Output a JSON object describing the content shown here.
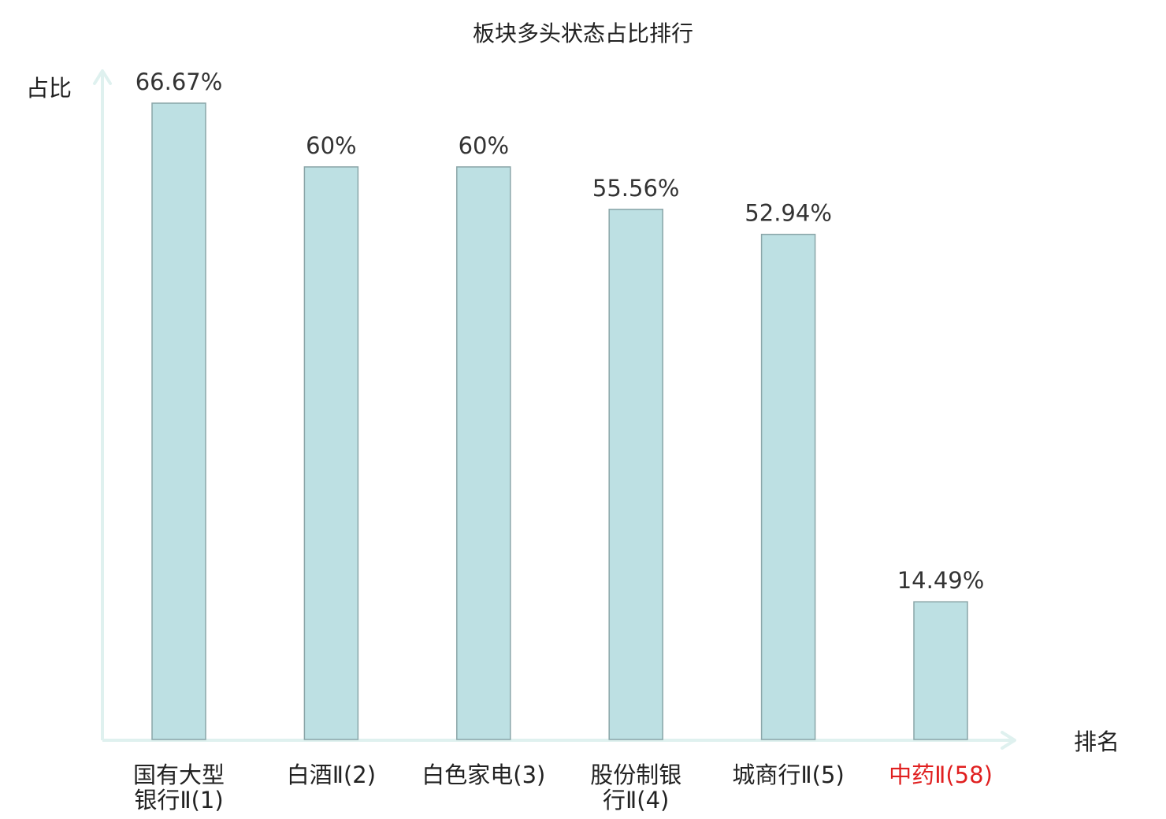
{
  "chart_data": {
    "type": "bar",
    "title": "板块多头状态占比排行",
    "ylabel": "占比",
    "xlabel": "排名",
    "ylim": [
      0,
      70
    ],
    "grid": false,
    "legend": "none",
    "categories": [
      [
        "国有大型",
        "银行Ⅱ(1)"
      ],
      [
        "白酒Ⅱ(2)"
      ],
      [
        "白色家电(3)"
      ],
      [
        "股份制银",
        "行Ⅱ(4)"
      ],
      [
        "城商行Ⅱ(5)"
      ],
      [
        "中药Ⅱ(58)"
      ]
    ],
    "values": [
      66.67,
      60,
      60,
      55.56,
      52.94,
      14.49
    ],
    "value_labels": [
      "66.67%",
      "60%",
      "60%",
      "55.56%",
      "52.94%",
      "14.49%"
    ],
    "highlight_index": 5,
    "colors": {
      "bar_fill": "#bde0e3",
      "bar_stroke": "#8aa5a8",
      "axis": "#dff1ef",
      "text": "#222222",
      "value_text": "#333333",
      "highlight_text": "#e02020"
    }
  }
}
